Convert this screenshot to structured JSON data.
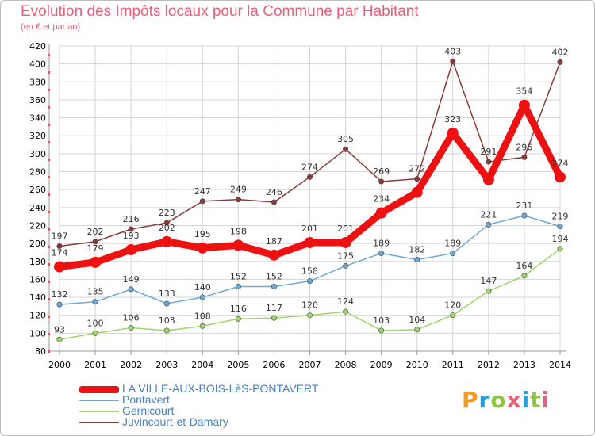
{
  "header": {
    "title": "Evolution des Impôts locaux pour la Commune par Habitant",
    "subtitle": "(en € et par an)"
  },
  "logo": {
    "text": "Proxiti",
    "colors": [
      "#f39a1f",
      "#2f9ad6",
      "#8cc63f",
      "#e8607a",
      "#2f9ad6",
      "#8cc63f",
      "#e8607a"
    ]
  },
  "chart_data": {
    "type": "line",
    "x": [
      "2000",
      "2001",
      "2002",
      "2003",
      "2004",
      "2005",
      "2006",
      "2007",
      "2008",
      "2009",
      "2010",
      "2011",
      "2012",
      "2013",
      "2014"
    ],
    "ylim": [
      80,
      420
    ],
    "yticks": [
      80,
      100,
      120,
      140,
      160,
      180,
      200,
      220,
      240,
      260,
      280,
      300,
      320,
      340,
      360,
      380,
      400,
      420
    ],
    "grid": true,
    "series": [
      {
        "name": "LA VILLE-AUX-BOIS-LèS-PONTAVERT",
        "color": "#ee1111",
        "width": 9,
        "values": [
          174,
          179,
          193,
          202,
          195,
          198,
          187,
          201,
          201,
          234,
          257,
          323,
          271,
          354,
          274
        ],
        "labels": [
          "174",
          "179",
          "193",
          "202",
          "195",
          "198",
          "187",
          "201",
          "201",
          "234",
          "",
          "323",
          "",
          "354",
          "274"
        ]
      },
      {
        "name": "Pontavert",
        "color": "#6fa8d6",
        "width": 1.5,
        "values": [
          132,
          135,
          149,
          133,
          140,
          152,
          152,
          158,
          175,
          189,
          182,
          189,
          221,
          231,
          219
        ],
        "labels": [
          "132",
          "135",
          "149",
          "133",
          "140",
          "152",
          "152",
          "158",
          "175",
          "189",
          "182",
          "189",
          "221",
          "231",
          "219"
        ]
      },
      {
        "name": "Gernicourt",
        "color": "#9fd66a",
        "width": 1.5,
        "values": [
          93,
          100,
          106,
          103,
          108,
          116,
          117,
          120,
          124,
          103,
          104,
          120,
          147,
          164,
          194
        ],
        "labels": [
          "93",
          "100",
          "106",
          "103",
          "108",
          "116",
          "117",
          "120",
          "124",
          "103",
          "104",
          "120",
          "147",
          "164",
          "194"
        ]
      },
      {
        "name": "Juvincourt-et-Damary",
        "color": "#8b3a3a",
        "width": 1.5,
        "values": [
          197,
          202,
          216,
          223,
          247,
          249,
          246,
          274,
          305,
          269,
          272,
          403,
          291,
          296,
          402
        ],
        "labels": [
          "197",
          "202",
          "216",
          "223",
          "247",
          "249",
          "246",
          "274",
          "305",
          "269",
          "272",
          "403",
          "291",
          "296",
          "402"
        ]
      }
    ]
  }
}
